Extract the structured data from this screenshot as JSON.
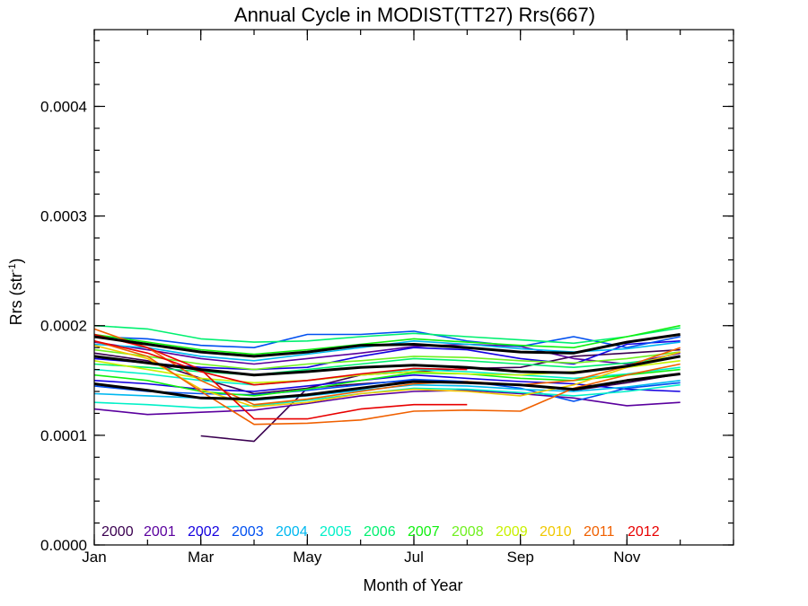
{
  "chart_data": {
    "type": "line",
    "title": "Annual Cycle in MODIST(TT27) Rrs(667)",
    "xlabel": "Month of Year",
    "ylabel_main": "Rrs (str",
    "ylabel_sup": "-1",
    "ylabel_end": ")",
    "xlim": [
      1,
      13
    ],
    "ylim": [
      0,
      0.00047
    ],
    "x_ticks": [
      {
        "value": 1,
        "label": "Jan"
      },
      {
        "value": 3,
        "label": "Mar"
      },
      {
        "value": 5,
        "label": "May"
      },
      {
        "value": 7,
        "label": "Jul"
      },
      {
        "value": 9,
        "label": "Sep"
      },
      {
        "value": 11,
        "label": "Nov"
      }
    ],
    "y_ticks": [
      {
        "value": 0.0,
        "label": "0.0000"
      },
      {
        "value": 0.0001,
        "label": "0.0001"
      },
      {
        "value": 0.0002,
        "label": "0.0002"
      },
      {
        "value": 0.0003,
        "label": "0.0003"
      },
      {
        "value": 0.0004,
        "label": "0.0004"
      }
    ],
    "legend": [
      "2000",
      "2001",
      "2002",
      "2003",
      "2004",
      "2005",
      "2006",
      "2007",
      "2008",
      "2009",
      "2010",
      "2011",
      "2012"
    ],
    "legend_placement": "bottom-left",
    "x": [
      1,
      2,
      3,
      4,
      5,
      6,
      7,
      8,
      9,
      10,
      11,
      12
    ],
    "series": [
      {
        "name": "2000",
        "color": "#3a0050",
        "values": [
          null,
          null,
          9.95e-05,
          9.45e-05,
          0.000143,
          0.000155,
          0.000158,
          0.000161,
          0.000162,
          0.000172,
          0.000175,
          0.000178
        ]
      },
      {
        "name": "2000",
        "color": "#3a0050",
        "values": [
          0.000175,
          0.000168,
          0.000152,
          0.000138,
          0.000143,
          0.000147,
          0.00015,
          0.000148,
          0.000146,
          0.000141,
          0.000148,
          0.000156
        ]
      },
      {
        "name": "2001",
        "color": "#5a009e",
        "values": [
          0.000124,
          0.000119,
          0.000121,
          0.000123,
          0.000129,
          0.000136,
          0.00014,
          0.000141,
          0.000138,
          0.000134,
          0.000127,
          0.00013
        ]
      },
      {
        "name": "2001",
        "color": "#5a009e",
        "values": [
          0.000185,
          0.000178,
          0.00017,
          0.000165,
          0.00017,
          0.000175,
          0.000181,
          0.000183,
          0.000181,
          0.00017,
          0.000165,
          0.000175
        ]
      },
      {
        "name": "2002",
        "color": "#1400e0",
        "values": [
          0.00017,
          0.000166,
          0.000162,
          0.00016,
          0.000162,
          0.000172,
          0.00018,
          0.000178,
          0.00017,
          0.000165,
          0.000183,
          0.000186
        ]
      },
      {
        "name": "2002",
        "color": "#1400e0",
        "values": [
          0.00015,
          0.000147,
          0.000142,
          0.00014,
          0.000145,
          0.00015,
          0.000155,
          0.000152,
          0.000149,
          0.000147,
          0.000142,
          0.00014
        ]
      },
      {
        "name": "2003",
        "color": "#0050f0",
        "values": [
          0.000145,
          0.00014,
          0.000138,
          0.000137,
          0.000141,
          0.000146,
          0.000151,
          0.000149,
          0.000143,
          0.000131,
          0.000143,
          0.000148
        ]
      },
      {
        "name": "2003",
        "color": "#0050f0",
        "values": [
          0.00019,
          0.000188,
          0.000182,
          0.00018,
          0.000192,
          0.000192,
          0.000195,
          0.000186,
          0.000181,
          0.00019,
          0.00018,
          0.00019
        ]
      },
      {
        "name": "2004",
        "color": "#00b8f0",
        "values": [
          0.000138,
          0.000136,
          0.000134,
          0.000132,
          0.000136,
          0.000141,
          0.000146,
          0.000145,
          0.000142,
          0.00014,
          0.000144,
          0.00015
        ]
      },
      {
        "name": "2004",
        "color": "#00b8f0",
        "values": [
          0.000183,
          0.00018,
          0.000172,
          0.000168,
          0.000174,
          0.00018,
          0.000186,
          0.000183,
          0.000179,
          0.000176,
          0.000179,
          0.000185
        ]
      },
      {
        "name": "2005",
        "color": "#00f0c8",
        "values": [
          0.00016,
          0.000156,
          0.00015,
          0.000146,
          0.00015,
          0.000155,
          0.00016,
          0.000158,
          0.000155,
          0.000152,
          0.000156,
          0.000162
        ]
      },
      {
        "name": "2005",
        "color": "#00f0c8",
        "values": [
          0.00013,
          0.000128,
          0.000125,
          0.000127,
          0.000132,
          0.000138,
          0.000143,
          0.000142,
          0.000139,
          0.000136,
          0.00014,
          0.000146
        ]
      },
      {
        "name": "2006",
        "color": "#00f070",
        "values": [
          0.0002,
          0.000197,
          0.000188,
          0.000185,
          0.000186,
          0.00019,
          0.000193,
          0.00019,
          0.000187,
          0.000184,
          0.00019,
          0.000198
        ]
      },
      {
        "name": "2006",
        "color": "#00f070",
        "values": [
          0.000165,
          0.000162,
          0.000158,
          0.000155,
          0.00016,
          0.000165,
          0.00017,
          0.000168,
          0.000165,
          0.000162,
          0.000166,
          0.000172
        ]
      },
      {
        "name": "2007",
        "color": "#10f010",
        "values": [
          0.000192,
          0.000185,
          0.000178,
          0.000174,
          0.000178,
          0.000183,
          0.000188,
          0.000185,
          0.000182,
          0.00018,
          0.00019,
          0.0002
        ]
      },
      {
        "name": "2007",
        "color": "#10f010",
        "values": [
          0.000155,
          0.00015,
          0.00014,
          0.000136,
          0.000142,
          0.00015,
          0.000157,
          0.000156,
          0.000152,
          0.00015,
          0.000155,
          0.00016
        ]
      },
      {
        "name": "2008",
        "color": "#70f020",
        "values": [
          0.000178,
          0.000172,
          0.000165,
          0.00016,
          0.000165,
          0.000168,
          0.000172,
          0.000171,
          0.000168,
          0.000166,
          0.00017,
          0.000176
        ]
      },
      {
        "name": "2009",
        "color": "#c8f000",
        "values": [
          0.000168,
          0.00016,
          0.000152,
          0.000148,
          0.00015,
          0.000155,
          0.000158,
          0.000156,
          0.000155,
          0.000158,
          0.000162,
          0.000168
        ]
      },
      {
        "name": "2010",
        "color": "#f0c800",
        "values": [
          0.000182,
          0.00017,
          0.000142,
          0.000126,
          0.00013,
          0.000138,
          0.000142,
          0.00014,
          0.000136,
          0.000146,
          0.000162,
          0.000176
        ]
      },
      {
        "name": "2011",
        "color": "#f06000",
        "values": [
          0.000186,
          0.000172,
          0.00014,
          0.00011,
          0.000111,
          0.000114,
          0.000122,
          0.000123,
          0.000122,
          0.000143,
          0.000155,
          0.000165
        ]
      },
      {
        "name": "2011",
        "color": "#f06000",
        "values": [
          0.000197,
          0.00018,
          0.00015,
          0.000128,
          0.000133,
          0.00014,
          0.000147,
          0.000149,
          0.000146,
          0.00015,
          0.000163,
          0.00018
        ]
      },
      {
        "name": "2012",
        "color": "#e80000",
        "values": [
          0.000192,
          0.00018,
          0.00016,
          0.000115,
          0.000115,
          0.000124,
          0.000128,
          0.000128,
          null,
          null,
          null,
          null
        ]
      },
      {
        "name": "2012",
        "color": "#e80000",
        "values": [
          0.000186,
          0.000175,
          0.000158,
          0.000146,
          0.00015,
          0.000156,
          0.000161,
          0.00016,
          null,
          null,
          null,
          null
        ]
      },
      {
        "name": "",
        "color": "#000000",
        "thick": true,
        "values": [
          0.00019,
          0.000183,
          0.000176,
          0.000172,
          0.000176,
          0.000182,
          0.000183,
          0.00018,
          0.000176,
          0.000175,
          0.000185,
          0.000192
        ]
      },
      {
        "name": "",
        "color": "#000000",
        "thick": true,
        "values": [
          0.000172,
          0.000166,
          0.00016,
          0.000155,
          0.000158,
          0.000162,
          0.000164,
          0.000162,
          0.000158,
          0.000157,
          0.000163,
          0.000172
        ]
      },
      {
        "name": "",
        "color": "#000000",
        "thick": true,
        "values": [
          0.000147,
          0.000141,
          0.000134,
          0.000133,
          0.000137,
          0.000143,
          0.000149,
          0.000148,
          0.000146,
          0.000142,
          0.00015,
          0.000156
        ]
      }
    ]
  },
  "legend_colors": [
    "#3a0050",
    "#5a009e",
    "#1400e0",
    "#0050f0",
    "#00b8f0",
    "#00f0c8",
    "#00f070",
    "#10f010",
    "#70f020",
    "#c8f000",
    "#f0c800",
    "#f06000",
    "#e80000"
  ]
}
